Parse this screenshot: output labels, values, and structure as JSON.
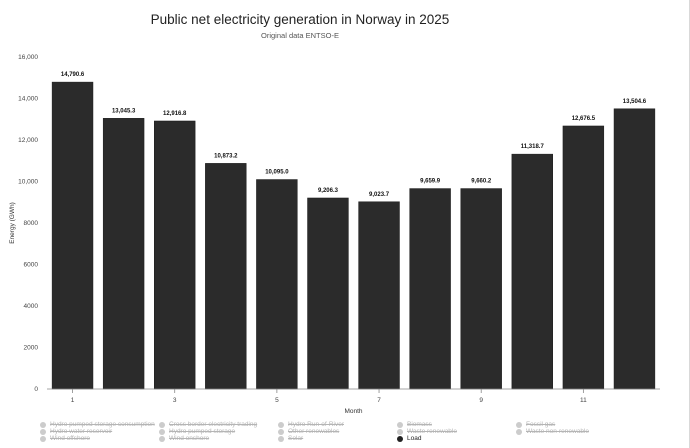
{
  "chart_data": {
    "type": "bar",
    "title": "Public net electricity generation in Norway in 2025",
    "subtitle": "Original data ENTSO-E",
    "xlabel": "Month",
    "ylabel": "Energy (GWh)",
    "ylim": [
      0,
      16000
    ],
    "yticks": [
      "0",
      "2000",
      "4000",
      "6000",
      "8000",
      "10,000",
      "12,000",
      "14,000",
      "16,000"
    ],
    "xtick_labels": [
      "1",
      "3",
      "5",
      "7",
      "9",
      "11"
    ],
    "categories": [
      1,
      2,
      3,
      4,
      5,
      6,
      7,
      8,
      9,
      10,
      11,
      12
    ],
    "series": [
      {
        "name": "Load",
        "color": "#2b2b2b",
        "values": [
          14790.6,
          13045.3,
          12916.8,
          10873.2,
          10095.0,
          9206.3,
          9023.7,
          9659.9,
          9660.2,
          11318.7,
          12676.5,
          13504.6
        ],
        "value_labels": [
          "14,790.6",
          "13,045.3",
          "12,916.8",
          "10,873.2",
          "10,095.0",
          "9,206.3",
          "9,023.7",
          "9,659.9",
          "9,660.2",
          "11,318.7",
          "12,676.5",
          "13,504.6"
        ]
      }
    ],
    "grid": false,
    "legend_position": "bottom"
  },
  "legend": [
    {
      "label": "Hydro pumped storage consumption",
      "active": false
    },
    {
      "label": "Cross border electricity trading",
      "active": false
    },
    {
      "label": "Hydro Run-of-River",
      "active": false
    },
    {
      "label": "Biomass",
      "active": false
    },
    {
      "label": "Fossil gas",
      "active": false
    },
    {
      "label": "Hydro water reservoir",
      "active": false
    },
    {
      "label": "Hydro pumped storage",
      "active": false
    },
    {
      "label": "Other renewables",
      "active": false
    },
    {
      "label": "Waste renewable",
      "active": false
    },
    {
      "label": "Waste non-renewable",
      "active": false
    },
    {
      "label": "Wind offshore",
      "active": false
    },
    {
      "label": "Wind onshore",
      "active": false
    },
    {
      "label": "Solar",
      "active": false
    },
    {
      "label": "Load",
      "active": true
    }
  ]
}
